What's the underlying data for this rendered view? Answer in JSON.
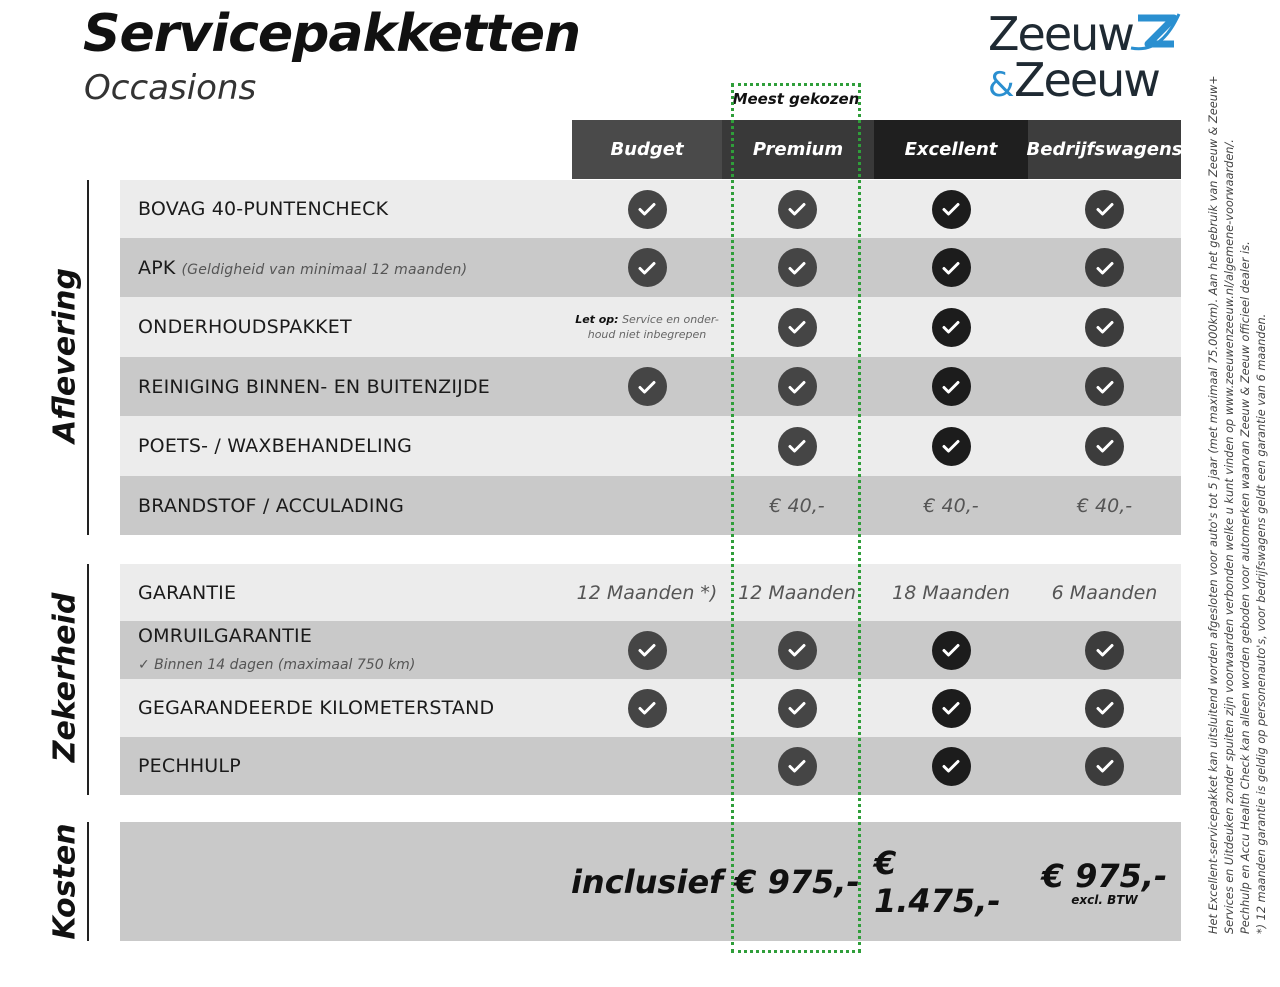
{
  "header": {
    "title": "Servicepakketten",
    "subtitle": "Occasions",
    "logo_text": "Zeeuw & Zeeuw",
    "badge": "Meest gekozen"
  },
  "colors": {
    "highlight": "#2f9e3a",
    "logo_blue": "#2a8fd0",
    "logo_dark": "#1f2a33"
  },
  "packages": [
    {
      "name": "Budget",
      "color": "#4a4a4a"
    },
    {
      "name": "Premium",
      "color": "#393939"
    },
    {
      "name": "Excellent",
      "color": "#1f1f1f"
    },
    {
      "name": "Bedrijfswagens",
      "color": "#3d3d3d"
    }
  ],
  "sections": {
    "aflevering": "Aflevering",
    "zekerheid": "Zekerheid",
    "kosten": "Kosten"
  },
  "aflevering_rows": [
    {
      "label": "BOVAG 40-PUNTENCHECK",
      "cells": [
        "check",
        "check",
        "check",
        "check"
      ]
    },
    {
      "label": "APK",
      "note": "(Geldigheid van minimaal 12 maanden)",
      "cells": [
        "check",
        "check",
        "check",
        "check"
      ]
    },
    {
      "label": "ONDERHOUDSPAKKET",
      "cells": [
        "",
        "check",
        "check",
        "check"
      ],
      "budget_note_bold": "Let op:",
      "budget_note": "Service en onder-houd niet inbegrepen"
    },
    {
      "label": "REINIGING BINNEN- EN BUITENZIJDE",
      "cells": [
        "check",
        "check",
        "check",
        "check"
      ]
    },
    {
      "label": "POETS- / WAXBEHANDELING",
      "cells": [
        "",
        "check",
        "check",
        "check"
      ]
    },
    {
      "label": "BRANDSTOF / ACCULADING",
      "cells": [
        "",
        "€ 40,-",
        "€ 40,-",
        "€ 40,-"
      ]
    }
  ],
  "zekerheid_rows": [
    {
      "label": "GARANTIE",
      "cells": [
        "12 Maanden *)",
        "12 Maanden",
        "18 Maanden",
        "6 Maanden"
      ]
    },
    {
      "label": "OMRUILGARANTIE",
      "sub": "✓   Binnen 14 dagen (maximaal 750 km)",
      "cells": [
        "check",
        "check",
        "check",
        "check"
      ]
    },
    {
      "label": "GEGARANDEERDE KILOMETERSTAND",
      "cells": [
        "check",
        "check",
        "check",
        "check"
      ]
    },
    {
      "label": "PECHHULP",
      "cells": [
        "",
        "check",
        "check",
        "check"
      ]
    }
  ],
  "kosten": {
    "cells": [
      "inclusief",
      "€ 975,-",
      "€ 1.475,-",
      "€ 975,-"
    ],
    "excl": "excl. BTW"
  },
  "footnotes": [
    "Het Excellent-servicepakket kan uitsluitend worden afgesloten voor auto's tot 5 jaar (met maximaal 75.000km). Aan het gebruik van Zeeuw & Zeeuw+",
    "Services en Uitdeuken zonder spuiten zijn voorwaarden verbonden welke u kunt vinden op www.zeeuwenzeeuw.nl/algemene-voorwaarden/.",
    "Pechhulp en Accu Health Check kan alleen worden geboden voor automerken waarvan Zeeuw & Zeeuw officieel dealer is.",
    "*) 12 maanden garantie is geldig op personenauto's, voor bedrijfswagens geldt een garantie van 6 maanden."
  ]
}
